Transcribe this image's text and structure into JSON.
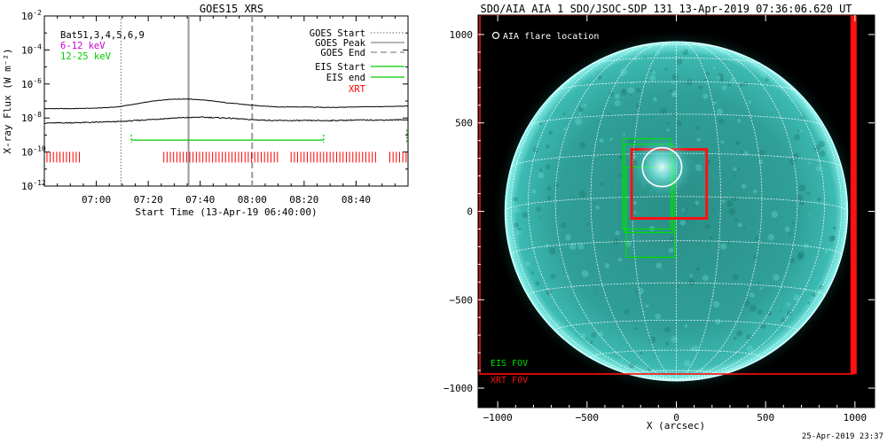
{
  "goes_panel": {
    "chart_data": {
      "type": "line",
      "title": "GOES15 XRS",
      "xlabel": "Start Time (13-Apr-19 06:40:00)",
      "ylabel": "X-ray Flux (W m⁻²)",
      "x_unit": "minutes since 06:40:00",
      "xlim": [
        0,
        140
      ],
      "ylim_log10": [
        -12,
        -2
      ],
      "x_ticks": [
        {
          "t": 20,
          "label": "07:00"
        },
        {
          "t": 40,
          "label": "07:20"
        },
        {
          "t": 60,
          "label": "07:40"
        },
        {
          "t": 80,
          "label": "08:00"
        },
        {
          "t": 100,
          "label": "08:20"
        },
        {
          "t": 120,
          "label": "08:40"
        }
      ],
      "y_ticks": [
        {
          "exp": -12,
          "label": "10",
          "sup": "-12"
        },
        {
          "exp": -10,
          "label": "10",
          "sup": "-10"
        },
        {
          "exp": -8,
          "label": "10",
          "sup": "-8"
        },
        {
          "exp": -6,
          "label": "10",
          "sup": "-6"
        },
        {
          "exp": -4,
          "label": "10",
          "sup": "-4"
        },
        {
          "exp": -2,
          "label": "10",
          "sup": "-2"
        }
      ],
      "series": [
        {
          "name": "6-12 keV",
          "color": "#000000",
          "x": [
            0,
            10,
            20,
            28,
            35,
            42,
            48,
            55,
            62,
            70,
            80,
            90,
            100,
            110,
            120,
            130,
            140
          ],
          "log10_y": [
            -7.45,
            -7.45,
            -7.42,
            -7.35,
            -7.18,
            -7.0,
            -6.9,
            -6.88,
            -6.95,
            -7.1,
            -7.25,
            -7.35,
            -7.35,
            -7.38,
            -7.35,
            -7.33,
            -7.3
          ]
        },
        {
          "name": "12-25 keV",
          "color": "#000000",
          "x": [
            0,
            10,
            20,
            30,
            40,
            50,
            60,
            70,
            80,
            90,
            100,
            110,
            120,
            130,
            140
          ],
          "log10_y": [
            -8.3,
            -8.28,
            -8.25,
            -8.2,
            -8.1,
            -8.0,
            -7.95,
            -8.0,
            -8.1,
            -8.15,
            -8.15,
            -8.15,
            -8.12,
            -8.12,
            -8.1
          ]
        }
      ],
      "events": {
        "goes_start": 29.5,
        "goes_peak": 55.5,
        "goes_end": 80
      },
      "eis_segment": {
        "start": 33.5,
        "end": 107.5,
        "log10_y": -9.3
      },
      "eis_edge_mark": {
        "t": 139.5,
        "log10_y": -9.1
      },
      "xrt_ranges": [
        [
          1,
          14
        ],
        [
          46,
          90
        ],
        [
          95,
          128
        ],
        [
          133,
          140
        ]
      ],
      "xrt_log10_y": -10.3,
      "legend": [
        {
          "label": "GOES Start",
          "style": "dotted",
          "color": "#888888"
        },
        {
          "label": "GOES Peak",
          "style": "solid",
          "color": "#888888"
        },
        {
          "label": "GOES End",
          "style": "dashed",
          "color": "#888888"
        },
        {
          "label": "EIS Start",
          "style": "solid",
          "color": "#00cc00"
        },
        {
          "label": "EIS end",
          "style": "solid",
          "color": "#00cc00"
        },
        {
          "label": "XRT",
          "style": "none",
          "color": "#ff0000"
        }
      ],
      "annotations": [
        {
          "text": "Bat51,3,4,5,6,9",
          "color": "#000000"
        },
        {
          "text": "6-12 keV",
          "color": "#cc00cc"
        },
        {
          "text": "12-25 keV",
          "color": "#00cc00"
        }
      ]
    }
  },
  "aia_panel": {
    "chart_data": {
      "type": "image",
      "title": "SDO/AIA AIA_1 SDO/JSOC-SDP 131 13-Apr-2019 07:36:06.620 UT",
      "xlabel": "X (arcsec)",
      "ylabel": "",
      "xlim": [
        -1110,
        1110
      ],
      "ylim": [
        -1110,
        1110
      ],
      "x_ticks": [
        -1000,
        -500,
        0,
        500,
        1000
      ],
      "y_ticks": [
        -1000,
        -500,
        0,
        500,
        1000
      ],
      "x_tick_labels": [
        "−1000",
        "−500",
        "0",
        "500",
        "1000"
      ],
      "y_tick_labels": [
        "−1000",
        "−500",
        "0",
        "500",
        "1000"
      ],
      "solar_radius": 958,
      "flare_location": {
        "x": -80,
        "y": 250,
        "r": 110
      },
      "flare_legend": "AIA flare location",
      "eis_fov_label": "EIS FOV",
      "xrt_fov_label": "XRT FOV",
      "eis_fov_boxes": [
        {
          "x0": -300,
          "y0": -100,
          "x1": -30,
          "y1": 410
        },
        {
          "x0": -290,
          "y0": -120,
          "x1": -20,
          "y1": 380
        },
        {
          "x0": -280,
          "y0": -260,
          "x1": -10,
          "y1": 250
        }
      ],
      "xrt_fov_boxes": [
        {
          "x0": -250,
          "y0": -40,
          "x1": 170,
          "y1": 350
        },
        {
          "x0": -1100,
          "y0": -920,
          "x1": 990,
          "y1": 1110
        }
      ],
      "colors": {
        "disk": "#3fbab2",
        "limb": "#c8ffff",
        "eis": "#00e000",
        "xrt": "#ff1010",
        "background": "#000000"
      }
    }
  },
  "footer": {
    "timestamp": "25-Apr-2019 23:37"
  }
}
